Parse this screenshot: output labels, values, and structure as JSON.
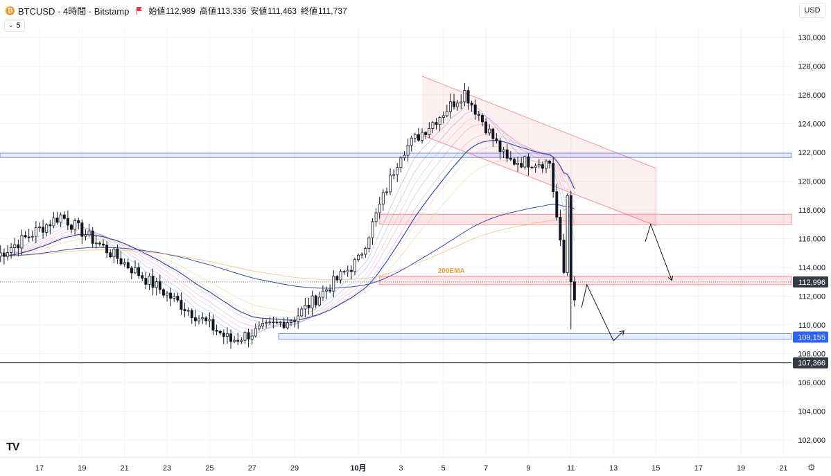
{
  "header": {
    "coin_icon": "bitcoin-icon",
    "symbol_title": "BTCUSD · 4時間 · Bitstamp",
    "open_label": "始値",
    "open_value": "112,989",
    "high_label": "高値",
    "high_value": "113,336",
    "low_label": "安値",
    "low_value": "111,463",
    "close_label": "終値",
    "close_value": "111,737",
    "indicator_count": "5",
    "currency": "USD"
  },
  "logo_text": "TV",
  "colors": {
    "up": "#ffffff",
    "down": "#131722",
    "grid": "#f0f3fa",
    "zone_red": "#f7c5c8",
    "zone_red_border": "#f08b92",
    "zone_blue": "#2962ff",
    "ema200": "#e8a33a",
    "ema_blue": "#3b4ba8"
  },
  "chart_data": {
    "type": "candlestick",
    "title": "BTCUSD · 4時間 · Bitstamp",
    "y_ticks": [
      "130,000",
      "128,000",
      "126,000",
      "124,000",
      "122,000",
      "120,000",
      "118,000",
      "116,000",
      "114,000",
      "112,000",
      "110,000",
      "108,000",
      "106,000",
      "104,000",
      "102,000"
    ],
    "x_ticks": [
      "17",
      "19",
      "21",
      "23",
      "25",
      "27",
      "29",
      "10月",
      "3",
      "5",
      "7",
      "9",
      "11",
      "13",
      "15",
      "17",
      "19",
      "21"
    ],
    "ylim": [
      101200,
      131300
    ],
    "price_labels": [
      {
        "value": 112996,
        "text": "112,996",
        "style": "dark"
      },
      {
        "value": 109155,
        "text": "109,155",
        "style": "blue"
      },
      {
        "value": 107366,
        "text": "107,366",
        "style": "dark"
      }
    ],
    "annotations": [
      {
        "text": "200EMA",
        "x": "10/5",
        "y": 113800
      }
    ],
    "zones": [
      {
        "kind": "resistance",
        "from": 121650,
        "to": 121950,
        "color": "blue"
      },
      {
        "kind": "resistance",
        "from": 117000,
        "to": 117700,
        "color": "red"
      },
      {
        "kind": "support-resistance",
        "from": 112800,
        "to": 113400,
        "color": "red"
      },
      {
        "kind": "support",
        "from": 109000,
        "to": 109400,
        "color": "blue"
      }
    ],
    "descending_channel": {
      "upper": [
        [
          "10/4",
          127300
        ],
        [
          "10/15",
          120900
        ]
      ],
      "lower": [
        [
          "10/4",
          123200
        ],
        [
          "10/15",
          116900
        ]
      ]
    },
    "projection_paths": [
      [
        [
          "10/14 12:00",
          115800
        ],
        [
          "10/14 18:00",
          117000
        ],
        [
          "10/15 18:00",
          113100
        ]
      ],
      [
        [
          "10/11 12:00",
          111200
        ],
        [
          "10/11 18:00",
          112800
        ],
        [
          "10/13",
          108900
        ],
        [
          "10/13 12:00",
          109600
        ]
      ]
    ],
    "key_points": [
      {
        "date": "9/15",
        "close": 114800
      },
      {
        "date": "9/18",
        "close": 117600
      },
      {
        "date": "9/22",
        "close": 113200
      },
      {
        "date": "9/26",
        "close": 108900
      },
      {
        "date": "9/29",
        "close": 110500
      },
      {
        "date": "10/1",
        "close": 114500
      },
      {
        "date": "10/3",
        "close": 122000
      },
      {
        "date": "10/6",
        "close": 126200
      },
      {
        "date": "10/8",
        "close": 121400
      },
      {
        "date": "10/10",
        "close": 121300
      },
      {
        "date": "10/10 20:00",
        "close": 111700
      }
    ]
  }
}
